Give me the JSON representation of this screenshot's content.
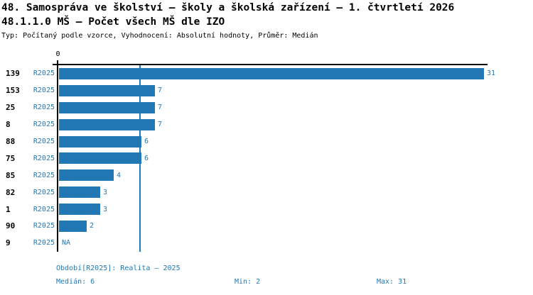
{
  "header": {
    "title_line1": "48. Samospráva ve školství – školy a školská zařízení – 1. čtvrtletí 2026",
    "title_line2": "48.1.1.0 MŠ – Počet všech MŠ dle IZO",
    "subtitle": "Typ: Počítaný podle vzorce, Vyhodnocení: Absolutní hodnoty, Průměr: Medián"
  },
  "chart_data": {
    "type": "bar",
    "orientation": "horizontal",
    "title": "48.1.1.0 MŠ – Počet všech MŠ dle IZO",
    "x_axis": {
      "origin_tick_label": "0",
      "xlim": [
        0,
        31
      ]
    },
    "median_reference_line": 6,
    "legend_position": "none",
    "grid": false,
    "categories": [
      "139",
      "153",
      "25",
      "8",
      "88",
      "75",
      "85",
      "82",
      "1",
      "90",
      "9"
    ],
    "series": [
      {
        "name": "R2025",
        "values": [
          31,
          7,
          7,
          7,
          6,
          6,
          4,
          3,
          3,
          2,
          null
        ]
      }
    ],
    "rows": [
      {
        "id": "139",
        "period": "R2025",
        "value": 31,
        "display": "31"
      },
      {
        "id": "153",
        "period": "R2025",
        "value": 7,
        "display": "7"
      },
      {
        "id": "25",
        "period": "R2025",
        "value": 7,
        "display": "7"
      },
      {
        "id": "8",
        "period": "R2025",
        "value": 7,
        "display": "7"
      },
      {
        "id": "88",
        "period": "R2025",
        "value": 6,
        "display": "6"
      },
      {
        "id": "75",
        "period": "R2025",
        "value": 6,
        "display": "6"
      },
      {
        "id": "85",
        "period": "R2025",
        "value": 4,
        "display": "4"
      },
      {
        "id": "82",
        "period": "R2025",
        "value": 3,
        "display": "3"
      },
      {
        "id": "1",
        "period": "R2025",
        "value": 3,
        "display": "3"
      },
      {
        "id": "90",
        "period": "R2025",
        "value": 2,
        "display": "2"
      },
      {
        "id": "9",
        "period": "R2025",
        "value": null,
        "display": "NA"
      }
    ],
    "colors": {
      "bar": "#2278b5",
      "axis": "#000000",
      "blue_text": "#2278b5"
    }
  },
  "footer": {
    "period_label": "Období[R2025]: Realita – 2025",
    "median_label": "Medián: 6",
    "min_label": "Min: 2",
    "max_label": "Max: 31"
  }
}
